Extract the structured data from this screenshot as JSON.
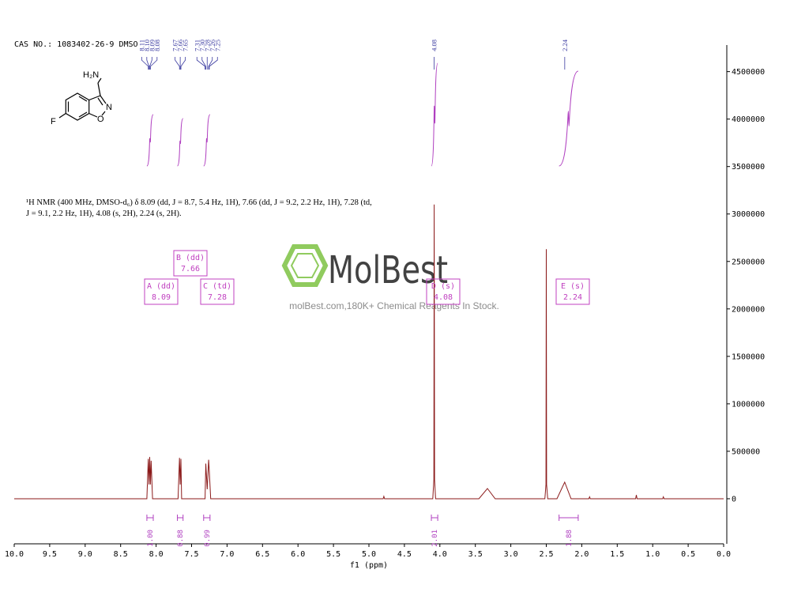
{
  "chart_data": {
    "type": "nmr",
    "header": "CAS NO.: 1083402-26-9 DMSO",
    "x_label": "f1 (ppm)",
    "xlim": [
      10,
      0
    ],
    "xticks": [
      {
        "value": 10,
        "label": "10.0"
      },
      {
        "value": 9.5,
        "label": "9.5"
      },
      {
        "value": 9,
        "label": "9.0"
      },
      {
        "value": 8.5,
        "label": "8.5"
      },
      {
        "value": 8,
        "label": "8.0"
      },
      {
        "value": 7.5,
        "label": "7.5"
      },
      {
        "value": 7,
        "label": "7.0"
      },
      {
        "value": 6.5,
        "label": "6.5"
      },
      {
        "value": 6,
        "label": "6.0"
      },
      {
        "value": 5.5,
        "label": "5.5"
      },
      {
        "value": 5,
        "label": "5.0"
      },
      {
        "value": 4.5,
        "label": "4.5"
      },
      {
        "value": 4,
        "label": "4.0"
      },
      {
        "value": 3.5,
        "label": "3.5"
      },
      {
        "value": 3,
        "label": "3.0"
      },
      {
        "value": 2.5,
        "label": "2.5"
      },
      {
        "value": 2,
        "label": "2.0"
      },
      {
        "value": 1.5,
        "label": "1.5"
      },
      {
        "value": 1,
        "label": "1.0"
      },
      {
        "value": 0.5,
        "label": "0.5"
      },
      {
        "value": 0,
        "label": "0.0"
      }
    ],
    "ylim": [
      -475000,
      4780000
    ],
    "yticks": [
      0,
      500000,
      1000000,
      1500000,
      2000000,
      2500000,
      3000000,
      3500000,
      4000000,
      4500000
    ],
    "color": "#8b1a1a",
    "x": [
      10.0,
      8.13,
      8.11,
      8.1,
      8.09,
      8.08,
      8.07,
      8.05,
      7.69,
      7.67,
      7.66,
      7.65,
      7.64,
      7.31,
      7.3,
      7.28,
      7.26,
      7.25,
      7.23,
      4.8,
      4.79,
      4.78,
      4.1,
      4.085,
      4.08,
      4.075,
      4.06,
      3.45,
      3.33,
      3.22,
      2.52,
      2.505,
      2.5,
      2.495,
      2.48,
      2.35,
      2.24,
      2.15,
      1.9,
      1.89,
      1.88,
      1.24,
      1.23,
      1.22,
      0.86,
      0.85,
      0.84,
      0.0
    ],
    "values": [
      0,
      0,
      420000,
      150000,
      440000,
      150000,
      400000,
      0,
      0,
      430000,
      150000,
      420000,
      0,
      0,
      370000,
      100000,
      410000,
      280000,
      0,
      0,
      25000,
      0,
      0,
      200000,
      3100000,
      200000,
      0,
      0,
      108000,
      0,
      0,
      150000,
      2630000,
      150000,
      0,
      0,
      175000,
      0,
      0,
      20000,
      0,
      0,
      40000,
      0,
      0,
      20000,
      0,
      0
    ],
    "peak_labels": [
      "8.11",
      "8.10",
      "8.09",
      "8.08",
      "7.67",
      "7.66",
      "7.65",
      "7.31",
      "7.30",
      "7.28",
      "7.26",
      "7.25",
      "4.08",
      "2.24"
    ],
    "integrals": [
      {
        "from": 8.13,
        "to": 8.04,
        "label": "1.00"
      },
      {
        "from": 7.7,
        "to": 7.62,
        "label": "0.88"
      },
      {
        "from": 7.33,
        "to": 7.24,
        "label": "0.99"
      },
      {
        "from": 4.12,
        "to": 4.03,
        "label": "2.01"
      },
      {
        "from": 2.32,
        "to": 2.05,
        "label": "1.88"
      }
    ],
    "multiplets": [
      {
        "label": "A (dd)",
        "shift": "8.09"
      },
      {
        "label": "B (dd)",
        "shift": "7.66"
      },
      {
        "label": "C (td)",
        "shift": "7.28"
      },
      {
        "label": "D (s)",
        "shift": "4.08"
      },
      {
        "label": "E (s)",
        "shift": "2.24"
      }
    ],
    "description": [
      "¹H NMR (400 MHz, DMSO-d₆) δ 8.09 (dd, J = 8.7, 5.4 Hz, 1H), 7.66 (dd, J = 9.2, 2.2 Hz, 1H), 7.28 (td,",
      "J = 9.1, 2.2 Hz, 1H), 4.08 (s, 2H), 2.24 (s, 2H)."
    ],
    "structure_labels": [
      "H₂N",
      "N",
      "O",
      "F"
    ],
    "watermark": "MolBest",
    "watermark_tagline": "molBest.com,180K+ Chemical Reagents In Stock."
  }
}
